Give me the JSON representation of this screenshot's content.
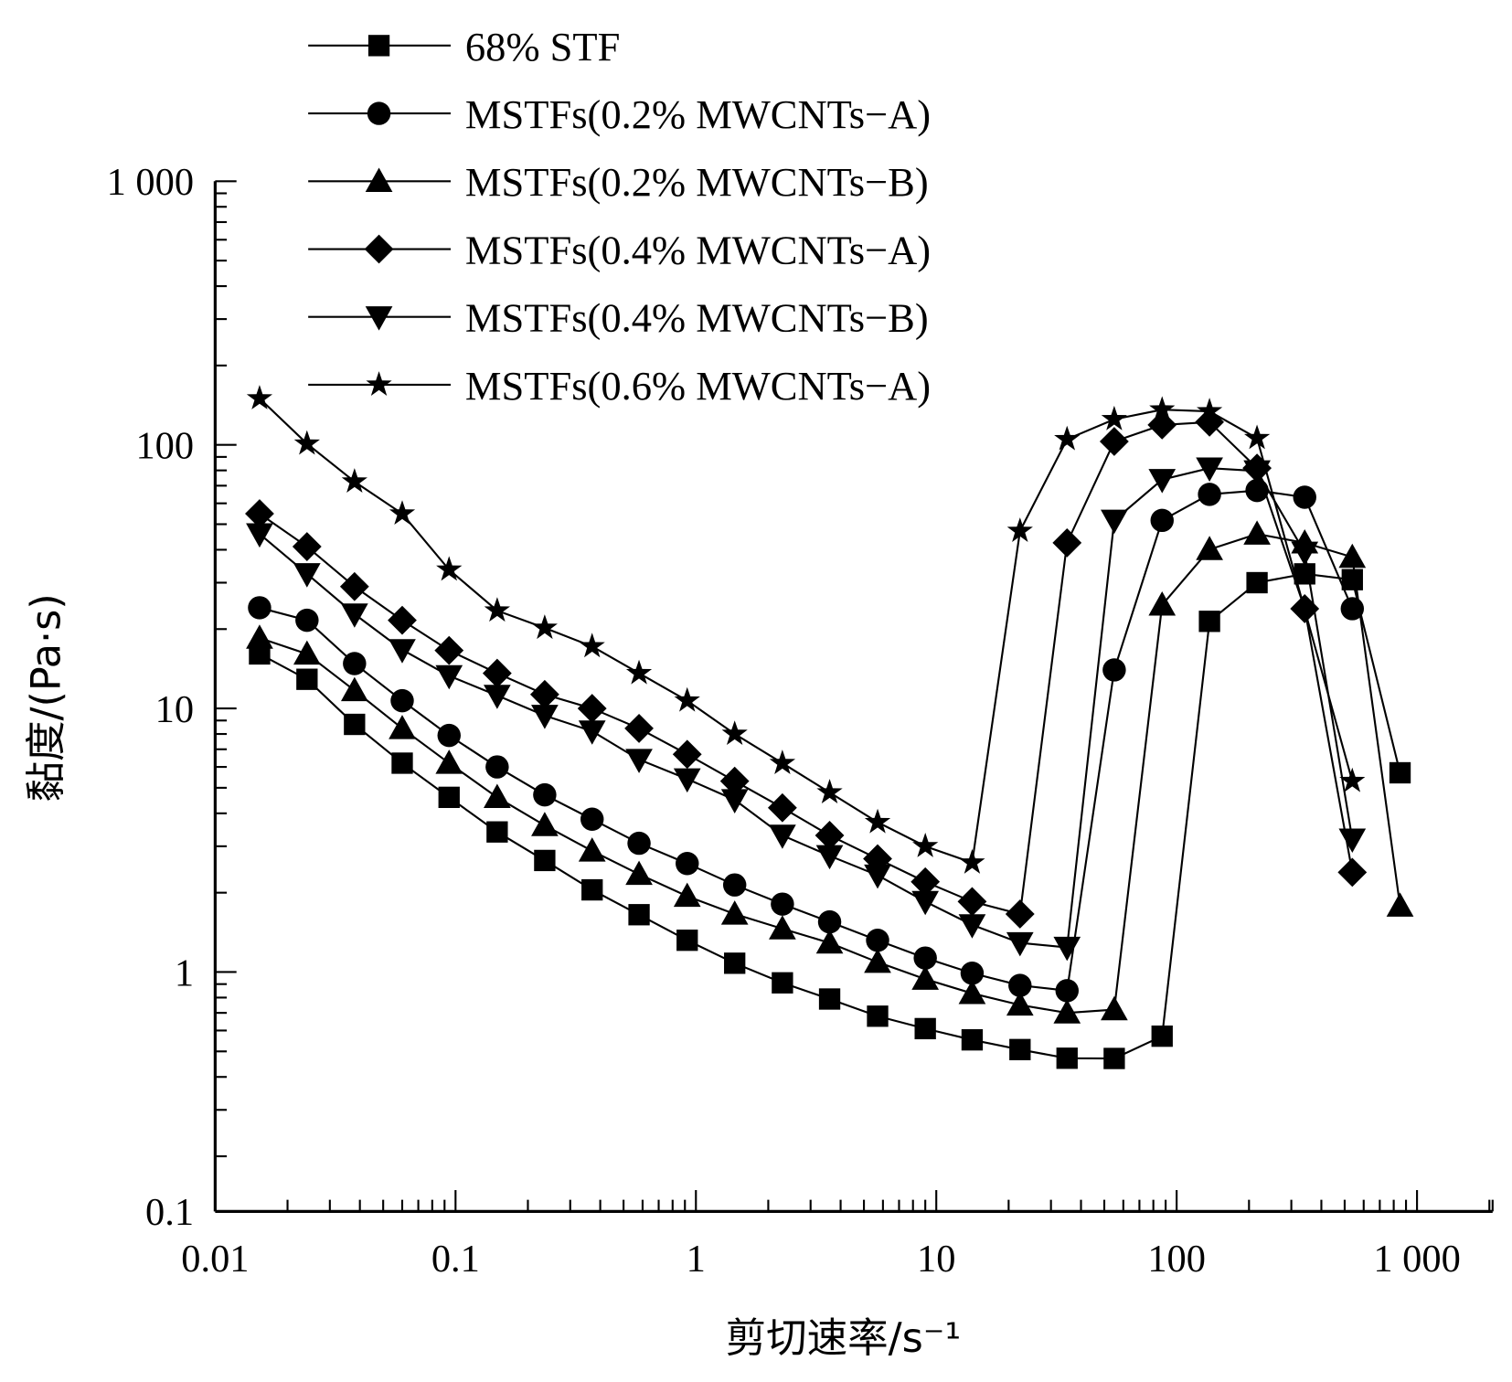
{
  "chart_data": {
    "type": "line",
    "title": "",
    "xlabel": "剪切速率/s⁻¹",
    "ylabel": "黏度/(Pa·s)",
    "xscale": "log",
    "yscale": "log",
    "xlim": [
      0.01,
      2000
    ],
    "ylim": [
      0.1,
      1000
    ],
    "x_ticks": [
      "0.01",
      "0.1",
      "1",
      "10",
      "100",
      "1 000"
    ],
    "y_ticks": [
      "0.1",
      "1",
      "10",
      "100",
      "1 000"
    ],
    "grid": false,
    "legend_position": "top",
    "x": [
      0.0153,
      0.0241,
      0.038,
      0.06,
      0.094,
      0.149,
      0.235,
      0.37,
      0.58,
      0.92,
      1.45,
      2.29,
      3.6,
      5.7,
      9.0,
      14.1,
      22.3,
      35,
      55,
      87,
      137,
      216,
      341,
      538,
      850
    ],
    "series": [
      {
        "name": "68% STF",
        "marker": "square",
        "values": [
          16.1,
          12.9,
          8.7,
          6.2,
          4.6,
          3.4,
          2.65,
          2.05,
          1.65,
          1.32,
          1.08,
          0.91,
          0.79,
          0.68,
          0.61,
          0.553,
          0.508,
          0.471,
          0.47,
          0.571,
          21.4,
          30,
          32.4,
          30.8,
          5.7
        ]
      },
      {
        "name": "MSTFs(0.2% MWCNTs−A)",
        "marker": "circle",
        "values": [
          24.1,
          21.6,
          14.8,
          10.7,
          7.9,
          6.0,
          4.7,
          3.8,
          3.08,
          2.58,
          2.14,
          1.81,
          1.55,
          1.32,
          1.13,
          0.99,
          0.89,
          0.85,
          14.0,
          51.7,
          64.9,
          67.1,
          63.3,
          23.9,
          null
        ]
      },
      {
        "name": "MSTFs(0.2% MWCNTs−B)",
        "marker": "triangle-up",
        "values": [
          18.5,
          16.1,
          11.7,
          8.4,
          6.2,
          4.6,
          3.6,
          2.88,
          2.35,
          1.94,
          1.66,
          1.46,
          1.29,
          1.09,
          0.94,
          0.83,
          0.75,
          0.7,
          0.72,
          24.7,
          40.1,
          45.9,
          42.5,
          37.5,
          1.78
        ]
      },
      {
        "name": "MSTFs(0.4% MWCNTs−A)",
        "marker": "diamond",
        "values": [
          54.8,
          41.1,
          29.0,
          21.6,
          16.6,
          13.6,
          11.3,
          10.0,
          8.4,
          6.7,
          5.3,
          4.2,
          3.3,
          2.69,
          2.2,
          1.85,
          1.66,
          42.5,
          103,
          119,
          122,
          81.6,
          23.9,
          2.39,
          null
        ]
      },
      {
        "name": "MSTFs(0.4% MWCNTs−B)",
        "marker": "triangle-down",
        "values": [
          45.9,
          32.4,
          22.8,
          16.7,
          13.3,
          11.2,
          9.4,
          8.2,
          6.4,
          5.4,
          4.5,
          3.3,
          2.76,
          2.33,
          1.85,
          1.51,
          1.29,
          1.24,
          51.7,
          73.8,
          81.6,
          79.6,
          39.1,
          3.19,
          null
        ]
      },
      {
        "name": "MSTFs(0.6% MWCNTs−A)",
        "marker": "star",
        "values": [
          150,
          101,
          72.5,
          54.8,
          33.6,
          23.5,
          20.2,
          17.2,
          13.6,
          10.7,
          8.0,
          6.2,
          4.8,
          3.7,
          3.0,
          2.6,
          47.1,
          105,
          125,
          136,
          134,
          106,
          null,
          5.3,
          null
        ]
      }
    ]
  }
}
